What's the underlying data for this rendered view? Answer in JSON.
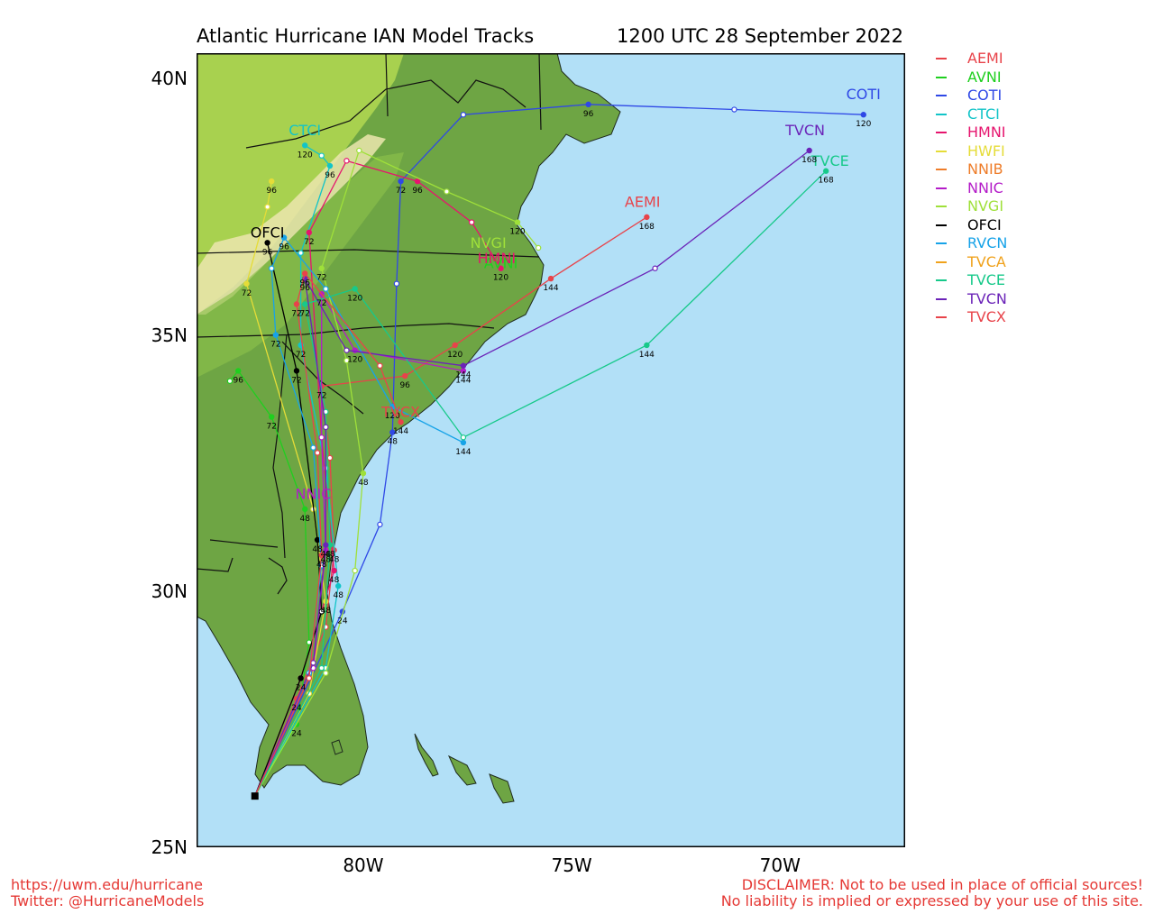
{
  "header": {
    "title": "Atlantic Hurricane IAN Model Tracks",
    "issued": "1200 UTC 28 September 2022"
  },
  "map": {
    "lon_range": [
      -84.0,
      -67.0
    ],
    "lat_range": [
      25.0,
      40.5
    ],
    "lat_ticks": [
      {
        "lat": 40,
        "label": "40N"
      },
      {
        "lat": 35,
        "label": "35N"
      },
      {
        "lat": 30,
        "label": "30N"
      },
      {
        "lat": 25,
        "label": "25N"
      }
    ],
    "lon_ticks": [
      {
        "lon": -80,
        "label": "80W"
      },
      {
        "lon": -75,
        "label": "75W"
      },
      {
        "lon": -70,
        "label": "70W"
      }
    ],
    "ocean_color": "#b2e0f7",
    "land_colors": [
      "#5f9b3b",
      "#8cc04c",
      "#b9df52",
      "#e8e3a8",
      "#f4efd6"
    ],
    "storm_origin": {
      "lon": -82.6,
      "lat": 26.0
    }
  },
  "legend": [
    {
      "name": "AEMI",
      "color": "#e8434a"
    },
    {
      "name": "AVNI",
      "color": "#1fcf1f"
    },
    {
      "name": "COTI",
      "color": "#2f48e6"
    },
    {
      "name": "CTCI",
      "color": "#12c4c8"
    },
    {
      "name": "HMNI",
      "color": "#e6156e"
    },
    {
      "name": "HWFI",
      "color": "#e5dc38"
    },
    {
      "name": "NNIB",
      "color": "#ee7d2a"
    },
    {
      "name": "NNIC",
      "color": "#b41cc8"
    },
    {
      "name": "NVGI",
      "color": "#9fe03a"
    },
    {
      "name": "OFCI",
      "color": "#000000"
    },
    {
      "name": "RVCN",
      "color": "#17a3e8"
    },
    {
      "name": "TVCA",
      "color": "#f0a21c"
    },
    {
      "name": "TVCE",
      "color": "#17c98a"
    },
    {
      "name": "TVCN",
      "color": "#6b23b8"
    },
    {
      "name": "TVCX",
      "color": "#e8434a"
    }
  ],
  "tracks": [
    {
      "name": "AEMI",
      "color": "#e8434a",
      "label": "AEMI",
      "label_pos": {
        "lon": -73.3,
        "lat": 37.5
      },
      "points": [
        {
          "lon": -82.6,
          "lat": 26.0
        },
        {
          "lon": -81.6,
          "lat": 27.9,
          "hr": 24
        },
        {
          "lon": -80.9,
          "lat": 29.3
        },
        {
          "lon": -80.7,
          "lat": 30.8,
          "hr": 48
        },
        {
          "lon": -80.8,
          "lat": 32.6
        },
        {
          "lon": -81.0,
          "lat": 34.0,
          "hr": 72
        },
        {
          "lon": -79.0,
          "lat": 34.2,
          "hr": 96
        },
        {
          "lon": -77.8,
          "lat": 34.8,
          "hr": 120
        },
        {
          "lon": -75.5,
          "lat": 36.1,
          "hr": 144
        },
        {
          "lon": -73.2,
          "lat": 37.3,
          "hr": 168
        }
      ]
    },
    {
      "name": "AVNI",
      "color": "#1fcf1f",
      "label": "AVNI",
      "label_pos": {
        "lon": -76.7,
        "lat": 36.3
      },
      "points": [
        {
          "lon": -82.6,
          "lat": 26.0
        },
        {
          "lon": -81.6,
          "lat": 27.4,
          "hr": 24
        },
        {
          "lon": -81.3,
          "lat": 29.0
        },
        {
          "lon": -81.4,
          "lat": 31.6,
          "hr": 48
        },
        {
          "lon": -82.2,
          "lat": 33.4,
          "hr": 72
        },
        {
          "lon": -83.0,
          "lat": 34.3,
          "hr": 96
        },
        {
          "lon": -83.2,
          "lat": 34.1
        }
      ]
    },
    {
      "name": "COTI",
      "color": "#2f48e6",
      "label": "COTI",
      "label_pos": {
        "lon": -68.0,
        "lat": 39.6
      },
      "points": [
        {
          "lon": -82.6,
          "lat": 26.0
        },
        {
          "lon": -80.5,
          "lat": 29.6,
          "hr": 24
        },
        {
          "lon": -79.6,
          "lat": 31.3
        },
        {
          "lon": -79.3,
          "lat": 33.1,
          "hr": 48
        },
        {
          "lon": -79.2,
          "lat": 36.0
        },
        {
          "lon": -79.1,
          "lat": 38.0,
          "hr": 72
        },
        {
          "lon": -77.6,
          "lat": 39.3
        },
        {
          "lon": -74.6,
          "lat": 39.5,
          "hr": 96
        },
        {
          "lon": -71.1,
          "lat": 39.4
        },
        {
          "lon": -68.0,
          "lat": 39.3,
          "hr": 120
        }
      ]
    },
    {
      "name": "CTCI",
      "color": "#12c4c8",
      "label": "CTCI",
      "label_pos": {
        "lon": -81.4,
        "lat": 38.9
      },
      "points": [
        {
          "lon": -82.6,
          "lat": 26.0
        },
        {
          "lon": -80.9,
          "lat": 28.5
        },
        {
          "lon": -80.6,
          "lat": 30.1,
          "hr": 48
        },
        {
          "lon": -80.9,
          "lat": 32.4
        },
        {
          "lon": -81.5,
          "lat": 34.8,
          "hr": 72
        },
        {
          "lon": -81.5,
          "lat": 36.6
        },
        {
          "lon": -80.8,
          "lat": 38.3,
          "hr": 96
        },
        {
          "lon": -81.0,
          "lat": 38.5
        },
        {
          "lon": -81.4,
          "lat": 38.7,
          "hr": 120
        }
      ]
    },
    {
      "name": "HMNI",
      "color": "#e6156e",
      "label": "HMNI",
      "label_pos": {
        "lon": -76.8,
        "lat": 36.4
      },
      "points": [
        {
          "lon": -82.6,
          "lat": 26.0
        },
        {
          "lon": -81.5,
          "lat": 28.3
        },
        {
          "lon": -80.7,
          "lat": 30.4,
          "hr": 48
        },
        {
          "lon": -81.0,
          "lat": 33.0
        },
        {
          "lon": -81.3,
          "lat": 37.0,
          "hr": 72
        },
        {
          "lon": -80.4,
          "lat": 38.4
        },
        {
          "lon": -78.7,
          "lat": 38.0,
          "hr": 96
        },
        {
          "lon": -77.4,
          "lat": 37.2
        },
        {
          "lon": -76.7,
          "lat": 36.3,
          "hr": 120
        }
      ]
    },
    {
      "name": "HWFI",
      "color": "#e5dc38",
      "label": "",
      "label_pos": null,
      "points": [
        {
          "lon": -82.6,
          "lat": 26.0
        },
        {
          "lon": -81.3,
          "lat": 28.0
        },
        {
          "lon": -80.9,
          "lat": 29.8,
          "hr": 48
        },
        {
          "lon": -81.2,
          "lat": 31.6
        },
        {
          "lon": -82.8,
          "lat": 36.0,
          "hr": 72
        },
        {
          "lon": -82.3,
          "lat": 37.5
        },
        {
          "lon": -82.2,
          "lat": 38.0,
          "hr": 96
        }
      ]
    },
    {
      "name": "NNIC",
      "color": "#b41cc8",
      "label": "NNIC",
      "label_pos": {
        "lon": -81.2,
        "lat": 31.8
      },
      "points": [
        {
          "lon": -82.6,
          "lat": 26.0
        },
        {
          "lon": -81.2,
          "lat": 28.5
        },
        {
          "lon": -80.9,
          "lat": 30.8,
          "hr": 48
        },
        {
          "lon": -81.0,
          "lat": 33.0
        },
        {
          "lon": -81.0,
          "lat": 35.8,
          "hr": 72
        },
        {
          "lon": -80.2,
          "lat": 34.7,
          "hr": 120
        },
        {
          "lon": -77.6,
          "lat": 34.3,
          "hr": 144
        }
      ]
    },
    {
      "name": "NVGI",
      "color": "#9fe03a",
      "label": "NVGI",
      "label_pos": {
        "lon": -77.0,
        "lat": 36.7
      },
      "points": [
        {
          "lon": -82.6,
          "lat": 26.0
        },
        {
          "lon": -80.9,
          "lat": 28.4
        },
        {
          "lon": -80.2,
          "lat": 30.4
        },
        {
          "lon": -80.0,
          "lat": 32.3,
          "hr": 48
        },
        {
          "lon": -80.4,
          "lat": 34.5
        },
        {
          "lon": -81.0,
          "lat": 36.3,
          "hr": 72
        },
        {
          "lon": -80.1,
          "lat": 38.6
        },
        {
          "lon": -78.0,
          "lat": 37.8
        },
        {
          "lon": -76.3,
          "lat": 37.2,
          "hr": 120
        },
        {
          "lon": -75.8,
          "lat": 36.7
        }
      ]
    },
    {
      "name": "OFCI",
      "color": "#000000",
      "label": "OFCI",
      "label_pos": {
        "lon": -82.3,
        "lat": 36.9
      },
      "points": [
        {
          "lon": -82.6,
          "lat": 26.0
        },
        {
          "lon": -81.5,
          "lat": 28.3,
          "hr": 24
        },
        {
          "lon": -81.0,
          "lat": 29.6
        },
        {
          "lon": -81.1,
          "lat": 31.0,
          "hr": 48
        },
        {
          "lon": -81.6,
          "lat": 34.3,
          "hr": 72
        },
        {
          "lon": -82.3,
          "lat": 36.8,
          "hr": 96
        }
      ]
    },
    {
      "name": "RVCN",
      "color": "#17a3e8",
      "label": "",
      "label_pos": null,
      "points": [
        {
          "lon": -82.6,
          "lat": 26.0
        },
        {
          "lon": -81.3,
          "lat": 28.4
        },
        {
          "lon": -81.0,
          "lat": 30.5
        },
        {
          "lon": -81.2,
          "lat": 32.8
        },
        {
          "lon": -82.1,
          "lat": 35.0,
          "hr": 72
        },
        {
          "lon": -82.2,
          "lat": 36.3
        },
        {
          "lon": -81.9,
          "lat": 36.9,
          "hr": 96
        },
        {
          "lon": -80.9,
          "lat": 35.9
        },
        {
          "lon": -79.3,
          "lat": 33.6,
          "hr": 120
        },
        {
          "lon": -77.6,
          "lat": 32.9,
          "hr": 144
        }
      ]
    },
    {
      "name": "TVCE",
      "color": "#17c98a",
      "label": "TVCE",
      "label_pos": {
        "lon": -68.8,
        "lat": 38.3
      },
      "points": [
        {
          "lon": -82.6,
          "lat": 26.0
        },
        {
          "lon": -81.0,
          "lat": 28.5
        },
        {
          "lon": -80.8,
          "lat": 30.9,
          "hr": 48
        },
        {
          "lon": -80.9,
          "lat": 33.5
        },
        {
          "lon": -81.4,
          "lat": 35.6,
          "hr": 72
        },
        {
          "lon": -80.2,
          "lat": 35.9,
          "hr": 120
        },
        {
          "lon": -77.6,
          "lat": 33.0
        },
        {
          "lon": -73.2,
          "lat": 34.8,
          "hr": 144
        },
        {
          "lon": -68.9,
          "lat": 38.2,
          "hr": 168
        }
      ]
    },
    {
      "name": "TVCN",
      "color": "#6b23b8",
      "label": "TVCN",
      "label_pos": {
        "lon": -69.4,
        "lat": 38.9
      },
      "points": [
        {
          "lon": -82.6,
          "lat": 26.0
        },
        {
          "lon": -81.2,
          "lat": 28.6
        },
        {
          "lon": -80.9,
          "lat": 30.9,
          "hr": 48
        },
        {
          "lon": -80.9,
          "lat": 33.2
        },
        {
          "lon": -81.4,
          "lat": 36.1,
          "hr": 96
        },
        {
          "lon": -80.4,
          "lat": 34.7
        },
        {
          "lon": -77.6,
          "lat": 34.4,
          "hr": 144
        },
        {
          "lon": -73.0,
          "lat": 36.3
        },
        {
          "lon": -69.3,
          "lat": 38.6,
          "hr": 168
        }
      ]
    },
    {
      "name": "TVCX",
      "color": "#e8434a",
      "label": "TVCX",
      "label_pos": {
        "lon": -79.1,
        "lat": 33.4
      },
      "points": [
        {
          "lon": -82.6,
          "lat": 26.0
        },
        {
          "lon": -81.3,
          "lat": 28.3
        },
        {
          "lon": -81.0,
          "lat": 30.7,
          "hr": 48
        },
        {
          "lon": -81.1,
          "lat": 32.7
        },
        {
          "lon": -81.6,
          "lat": 35.6,
          "hr": 72
        },
        {
          "lon": -81.4,
          "lat": 36.2,
          "hr": 96
        },
        {
          "lon": -79.6,
          "lat": 34.4
        },
        {
          "lon": -79.1,
          "lat": 33.3,
          "hr": 144
        }
      ]
    }
  ],
  "footer": {
    "source_url": "https://uwm.edu/hurricane",
    "twitter": "Twitter: @HurricaneModels",
    "disclaimer": "DISCLAIMER: Not to be used in place of official sources!",
    "liability": "No liability is implied or expressed by your use of this site."
  }
}
